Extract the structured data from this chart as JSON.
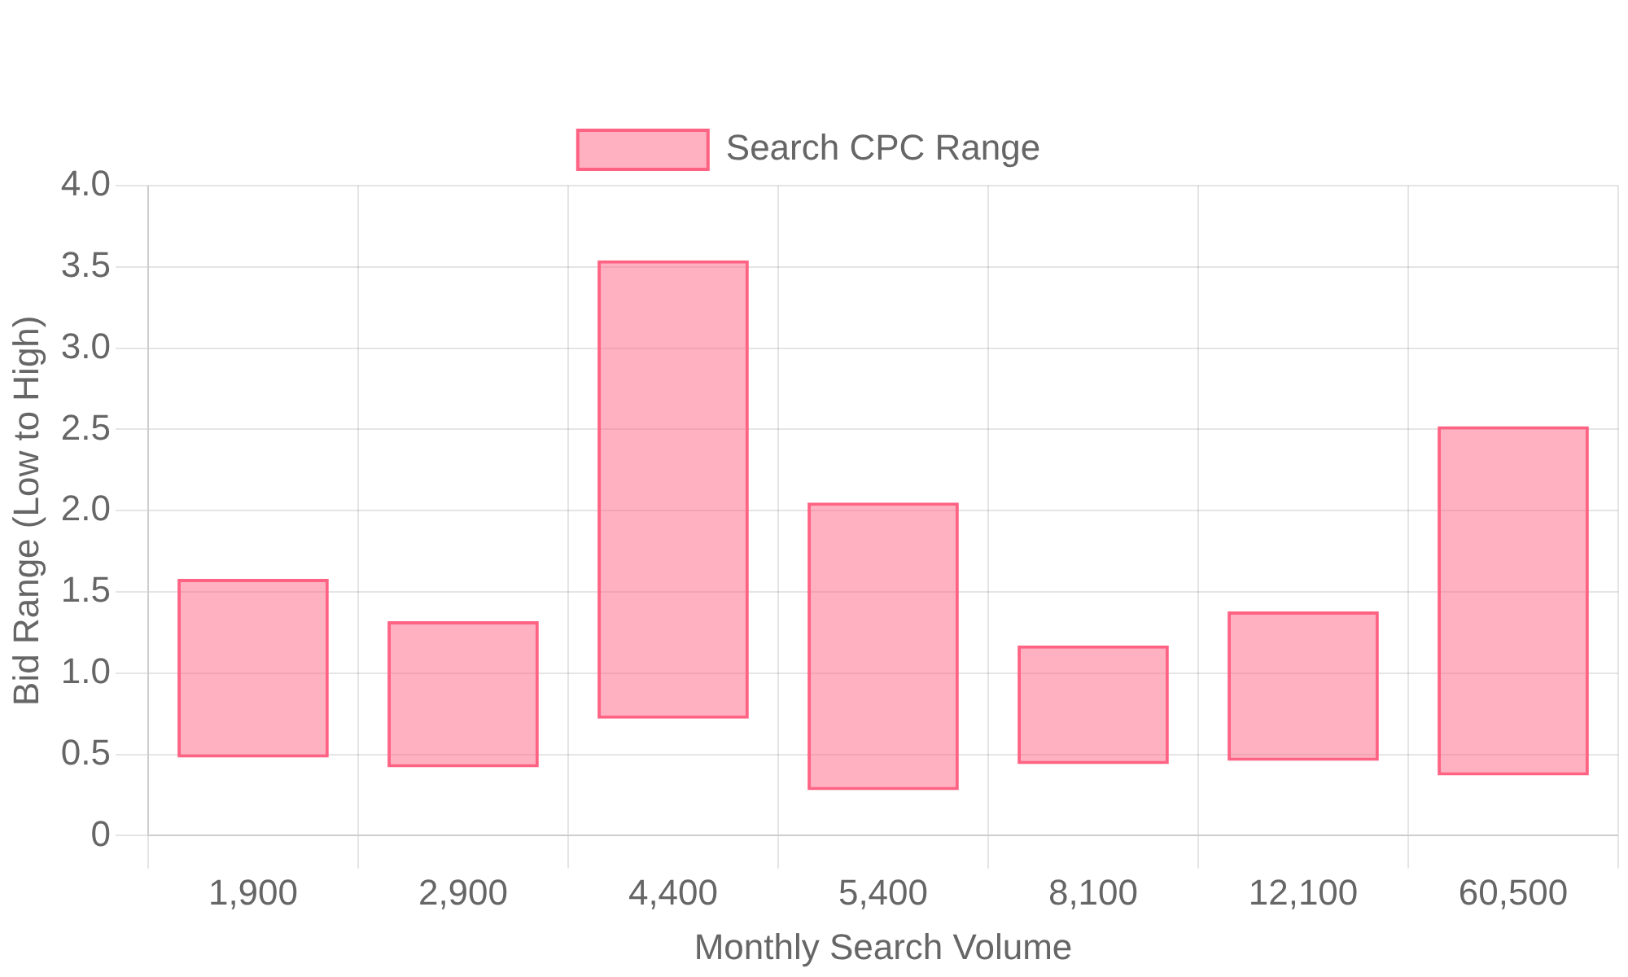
{
  "chart_data": {
    "type": "bar",
    "xlabel": "Monthly Search Volume",
    "ylabel": "Bid Range (Low to High)",
    "categories": [
      "1,900",
      "2,900",
      "4,400",
      "5,400",
      "8,100",
      "12,100",
      "60,500"
    ],
    "series": [
      {
        "name": "Search CPC Range",
        "color": "#ff6384",
        "values": [
          1.1,
          0.9,
          2.82,
          1.77,
          0.73,
          0.92,
          2.15
        ],
        "base": [
          0.48,
          0.42,
          0.72,
          0.28,
          0.44,
          0.46,
          0.37
        ]
      }
    ],
    "ylim": [
      0,
      4
    ],
    "yticks": [
      0,
      {
        "value": 0.5,
        "label": "0.5"
      },
      {
        "value": 1,
        "label": "1.0"
      },
      {
        "value": 1.5,
        "label": "1.5"
      },
      {
        "value": 2,
        "label": "2.0"
      },
      {
        "value": 2.5,
        "label": "2.5"
      },
      {
        "value": 3,
        "label": "3.0"
      },
      {
        "value": 3.5,
        "label": "3.5"
      },
      {
        "value": 4,
        "label": "4.0"
      }
    ],
    "grid": true,
    "legend": "top"
  }
}
